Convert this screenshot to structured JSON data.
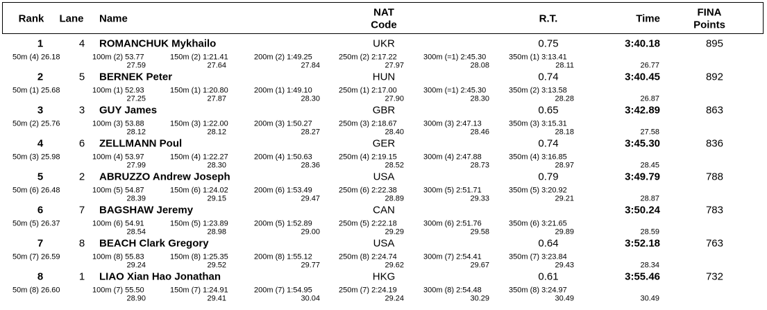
{
  "header": {
    "columns": [
      [
        "Rank"
      ],
      [
        "Lane"
      ],
      [
        "Name"
      ],
      [
        "NAT",
        "Code"
      ],
      [
        "R.T."
      ],
      [
        "Time"
      ],
      [
        "FINA",
        "Points"
      ]
    ]
  },
  "rows": [
    {
      "rank": 1,
      "lane": 4,
      "name": "ROMANCHUK Mykhailo",
      "nat": "UKR",
      "rt": "0.75",
      "time": "3:40.18",
      "points": 895,
      "splits": [
        "50m (4) 26.18",
        "100m (2) 53.77",
        "150m (2) 1:21.41",
        "200m (2) 1:49.25",
        "250m (2) 2:17.22",
        "300m (=1) 2:45.30",
        "350m (1) 3:13.41"
      ],
      "laps": [
        "27.59",
        "27.64",
        "27.84",
        "27.97",
        "28.08",
        "28.11",
        "26.77"
      ]
    },
    {
      "rank": 2,
      "lane": 5,
      "name": "BERNEK Peter",
      "nat": "HUN",
      "rt": "0.74",
      "time": "3:40.45",
      "points": 892,
      "splits": [
        "50m (1) 25.68",
        "100m (1) 52.93",
        "150m (1) 1:20.80",
        "200m (1) 1:49.10",
        "250m (1) 2:17.00",
        "300m (=1) 2:45.30",
        "350m (2) 3:13.58"
      ],
      "laps": [
        "27.25",
        "27.87",
        "28.30",
        "27.90",
        "28.30",
        "28.28",
        "26.87"
      ]
    },
    {
      "rank": 3,
      "lane": 3,
      "name": "GUY James",
      "nat": "GBR",
      "rt": "0.65",
      "time": "3:42.89",
      "points": 863,
      "splits": [
        "50m (2) 25.76",
        "100m (3) 53.88",
        "150m (3) 1:22.00",
        "200m (3) 1:50.27",
        "250m (3) 2:18.67",
        "300m (3) 2:47.13",
        "350m (3) 3:15.31"
      ],
      "laps": [
        "28.12",
        "28.12",
        "28.27",
        "28.40",
        "28.46",
        "28.18",
        "27.58"
      ]
    },
    {
      "rank": 4,
      "lane": 6,
      "name": "ZELLMANN Poul",
      "nat": "GER",
      "rt": "0.74",
      "time": "3:45.30",
      "points": 836,
      "splits": [
        "50m (3) 25.98",
        "100m (4) 53.97",
        "150m (4) 1:22.27",
        "200m (4) 1:50.63",
        "250m (4) 2:19.15",
        "300m (4) 2:47.88",
        "350m (4) 3:16.85"
      ],
      "laps": [
        "27.99",
        "28.30",
        "28.36",
        "28.52",
        "28.73",
        "28.97",
        "28.45"
      ]
    },
    {
      "rank": 5,
      "lane": 2,
      "name": "ABRUZZO Andrew Joseph",
      "nat": "USA",
      "rt": "0.79",
      "time": "3:49.79",
      "points": 788,
      "splits": [
        "50m (6) 26.48",
        "100m (5) 54.87",
        "150m (6) 1:24.02",
        "200m (6) 1:53.49",
        "250m (6) 2:22.38",
        "300m (5) 2:51.71",
        "350m (5) 3:20.92"
      ],
      "laps": [
        "28.39",
        "29.15",
        "29.47",
        "28.89",
        "29.33",
        "29.21",
        "28.87"
      ]
    },
    {
      "rank": 6,
      "lane": 7,
      "name": "BAGSHAW Jeremy",
      "nat": "CAN",
      "time": "3:50.24",
      "points": 783,
      "splits": [
        "50m (5) 26.37",
        "100m (6) 54.91",
        "150m (5) 1:23.89",
        "200m (5) 1:52.89",
        "250m (5) 2:22.18",
        "300m (6) 2:51.76",
        "350m (6) 3:21.65"
      ],
      "laps": [
        "28.54",
        "28.98",
        "29.00",
        "29.29",
        "29.58",
        "29.89",
        "28.59"
      ]
    },
    {
      "rank": 7,
      "lane": 8,
      "name": "BEACH Clark Gregory",
      "nat": "USA",
      "rt": "0.64",
      "time": "3:52.18",
      "points": 763,
      "splits": [
        "50m (7) 26.59",
        "100m (8) 55.83",
        "150m (8) 1:25.35",
        "200m (8) 1:55.12",
        "250m (8) 2:24.74",
        "300m (7) 2:54.41",
        "350m (7) 3:23.84"
      ],
      "laps": [
        "29.24",
        "29.52",
        "29.77",
        "29.62",
        "29.67",
        "29.43",
        "28.34"
      ]
    },
    {
      "rank": 8,
      "lane": 1,
      "name": "LIAO Xian Hao Jonathan",
      "nat": "HKG",
      "rt": "0.61",
      "time": "3:55.46",
      "points": 732,
      "splits": [
        "50m (8) 26.60",
        "100m (7) 55.50",
        "150m (7) 1:24.91",
        "200m (7) 1:54.95",
        "250m (7) 2:24.19",
        "300m (8) 2:54.48",
        "350m (8) 3:24.97"
      ],
      "laps": [
        "28.90",
        "29.41",
        "30.04",
        "29.24",
        "30.29",
        "30.49",
        "30.49"
      ]
    }
  ]
}
